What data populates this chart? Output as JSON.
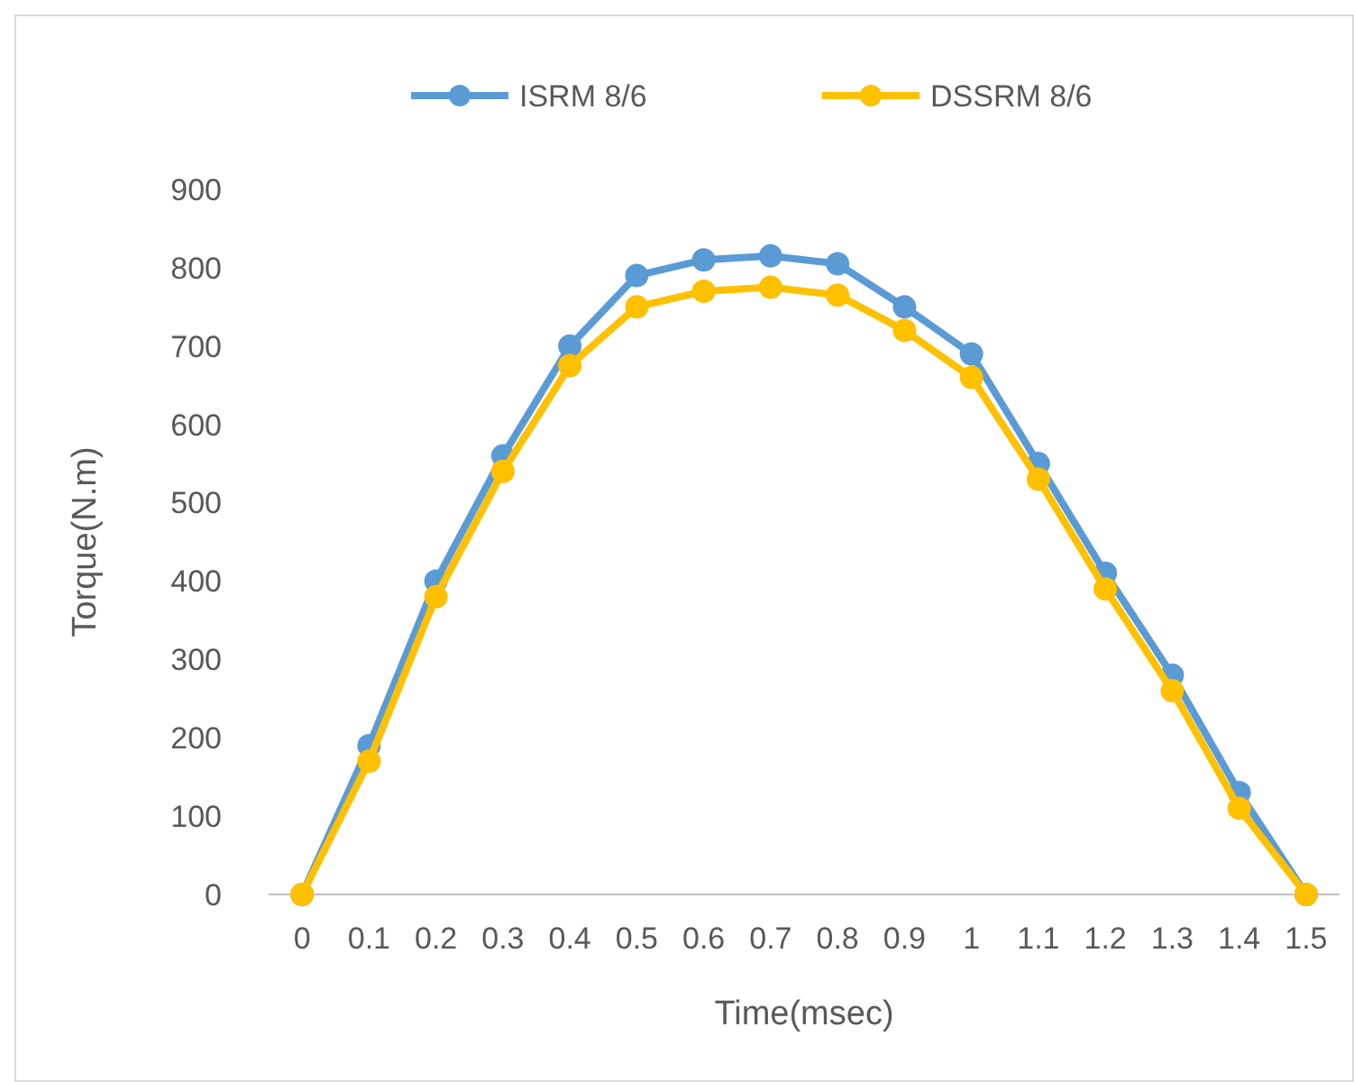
{
  "chart_data": {
    "type": "line",
    "xlabel": "Time(msec)",
    "ylabel": "Torque(N.m)",
    "categories": [
      "0",
      "0.1",
      "0.2",
      "0.3",
      "0.4",
      "0.5",
      "0.6",
      "0.7",
      "0.8",
      "0.9",
      "1",
      "1.1",
      "1.2",
      "1.3",
      "1.4",
      "1.5"
    ],
    "series": [
      {
        "name": "ISRM 8/6",
        "color": "#5b9bd5",
        "values": [
          0,
          190,
          400,
          560,
          700,
          790,
          810,
          815,
          805,
          750,
          690,
          550,
          410,
          280,
          130,
          0
        ]
      },
      {
        "name": "DSSRM 8/6",
        "color": "#ffc000",
        "values": [
          0,
          170,
          380,
          540,
          675,
          750,
          770,
          775,
          765,
          720,
          660,
          530,
          390,
          260,
          110,
          0
        ]
      }
    ],
    "ylim": [
      0,
      900
    ],
    "yticks": [
      0,
      100,
      200,
      300,
      400,
      500,
      600,
      700,
      800,
      900
    ],
    "grid": false,
    "legend": "top",
    "marker": "circle",
    "line_style": "solid"
  }
}
